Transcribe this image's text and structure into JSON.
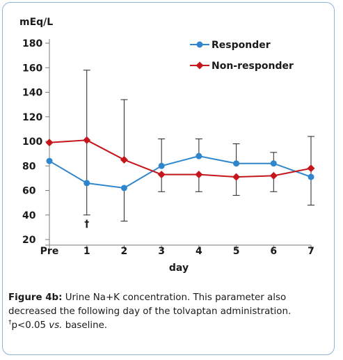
{
  "chart_data": {
    "type": "line",
    "title": "",
    "ylabel": "mEq/L",
    "xlabel": "day",
    "categories": [
      "Pre",
      "1",
      "2",
      "3",
      "4",
      "5",
      "6",
      "7"
    ],
    "yticks": [
      "20",
      "40",
      "60",
      "80",
      "100",
      "120",
      "140",
      "160",
      "180"
    ],
    "ylim": [
      20,
      180
    ],
    "grid": false,
    "legend_position": "top-right",
    "series": [
      {
        "name": "Responder",
        "color": "#2f86cc",
        "marker": "circle",
        "values": [
          84,
          66,
          62,
          80,
          88,
          82,
          82,
          71
        ],
        "error_upper": [
          null,
          158,
          null,
          102,
          102,
          98,
          91,
          null
        ],
        "error_lower": [
          null,
          40,
          35,
          null,
          null,
          null,
          null,
          null
        ]
      },
      {
        "name": "Non-responder",
        "color": "#c4161c",
        "marker": "diamond",
        "values": [
          99,
          101,
          85,
          73,
          73,
          71,
          72,
          78
        ],
        "error_upper": [
          null,
          null,
          134,
          null,
          null,
          null,
          null,
          104
        ],
        "error_lower": [
          null,
          null,
          null,
          59,
          59,
          56,
          59,
          48
        ]
      }
    ],
    "annotations": [
      {
        "category": "1",
        "text": "†",
        "y": 33
      }
    ]
  },
  "caption": {
    "label": "Figure 4b:",
    "text": "Urine Na+K concentration. This parameter also decreased the following day of the tolvaptan administration.",
    "footnote_mark": "†",
    "footnote_pre": "p<0.05 ",
    "footnote_em": "vs.",
    "footnote_post": " baseline."
  }
}
